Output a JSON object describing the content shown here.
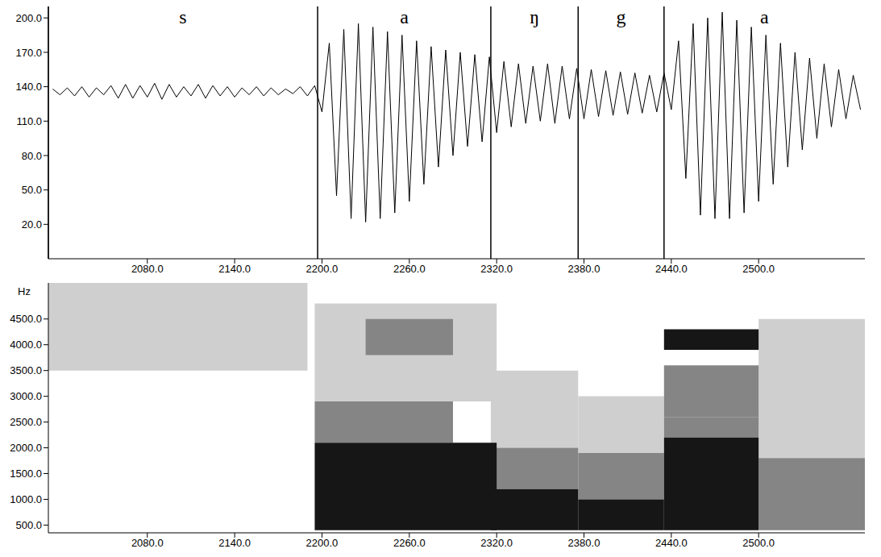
{
  "chart_data": [
    {
      "type": "line",
      "segments": [
        {
          "label": "s",
          "start": 2012,
          "end": 2197
        },
        {
          "label": "a",
          "start": 2197,
          "end": 2316
        },
        {
          "label": "ŋ",
          "start": 2316,
          "end": 2376
        },
        {
          "label": "g",
          "start": 2376,
          "end": 2435
        },
        {
          "label": "a",
          "start": 2435,
          "end": 2573
        }
      ],
      "x": [
        2015,
        2020,
        2025,
        2030,
        2035,
        2040,
        2045,
        2050,
        2055,
        2060,
        2065,
        2070,
        2075,
        2080,
        2085,
        2090,
        2095,
        2100,
        2105,
        2110,
        2115,
        2120,
        2125,
        2130,
        2135,
        2140,
        2145,
        2150,
        2155,
        2160,
        2165,
        2170,
        2175,
        2180,
        2185,
        2190,
        2195,
        2200,
        2205,
        2210,
        2215,
        2220,
        2225,
        2230,
        2235,
        2240,
        2245,
        2250,
        2255,
        2260,
        2265,
        2270,
        2275,
        2280,
        2285,
        2290,
        2295,
        2300,
        2305,
        2310,
        2315,
        2320,
        2325,
        2330,
        2335,
        2340,
        2345,
        2350,
        2355,
        2360,
        2365,
        2370,
        2375,
        2380,
        2385,
        2390,
        2395,
        2400,
        2405,
        2410,
        2415,
        2420,
        2425,
        2430,
        2435,
        2440,
        2445,
        2450,
        2455,
        2460,
        2465,
        2470,
        2475,
        2480,
        2485,
        2490,
        2495,
        2500,
        2505,
        2510,
        2515,
        2520,
        2525,
        2530,
        2535,
        2540,
        2545,
        2550,
        2555,
        2560,
        2565,
        2570
      ],
      "values": [
        138,
        133,
        139,
        132,
        140,
        131,
        139,
        133,
        141,
        130,
        142,
        130,
        141,
        131,
        143,
        129,
        142,
        131,
        140,
        132,
        142,
        130,
        141,
        132,
        140,
        131,
        139,
        133,
        140,
        132,
        139,
        133,
        138,
        134,
        140,
        132,
        141,
        118,
        178,
        45,
        190,
        25,
        195,
        22,
        192,
        25,
        188,
        30,
        185,
        40,
        180,
        55,
        175,
        70,
        172,
        80,
        170,
        88,
        168,
        92,
        166,
        100,
        162,
        105,
        160,
        108,
        158,
        110,
        160,
        108,
        158,
        112,
        156,
        112,
        155,
        114,
        154,
        115,
        153,
        116,
        152,
        117,
        150,
        118,
        152,
        120,
        180,
        60,
        195,
        28,
        200,
        25,
        205,
        25,
        198,
        30,
        192,
        40,
        185,
        55,
        178,
        70,
        170,
        85,
        165,
        95,
        160,
        105,
        155,
        112,
        150,
        120
      ],
      "color": "#000000",
      "xlim": [
        2012,
        2573
      ],
      "xticks": [
        {
          "value": 2080,
          "label": "2080.0"
        },
        {
          "value": 2140,
          "label": "2140.0"
        },
        {
          "value": 2200,
          "label": "2200.0"
        },
        {
          "value": 2260,
          "label": "2260.0"
        },
        {
          "value": 2320,
          "label": "2320.0"
        },
        {
          "value": 2380,
          "label": "2380.0"
        },
        {
          "value": 2440,
          "label": "2440.0"
        },
        {
          "value": 2500,
          "label": "2500.0"
        }
      ],
      "ylim": [
        -10,
        210
      ],
      "yticks": [
        {
          "value": 20,
          "label": "20.0"
        },
        {
          "value": 50,
          "label": "50.0"
        },
        {
          "value": 80,
          "label": "80.0"
        },
        {
          "value": 110,
          "label": "110.0"
        },
        {
          "value": 140,
          "label": "140.0"
        },
        {
          "value": 170,
          "label": "170.0"
        },
        {
          "value": 200,
          "label": "200.0"
        }
      ],
      "grid": false
    },
    {
      "type": "heatmap",
      "ylabel": "Hz",
      "cells": [
        {
          "x": [
            2012,
            2190
          ],
          "y": [
            3500,
            5200
          ],
          "level": 1
        },
        {
          "x": [
            2195,
            2320
          ],
          "y": [
            2900,
            4800
          ],
          "level": 1
        },
        {
          "x": [
            2316,
            2376
          ],
          "y": [
            2000,
            3500
          ],
          "level": 1
        },
        {
          "x": [
            2376,
            2435
          ],
          "y": [
            1900,
            3000
          ],
          "level": 1
        },
        {
          "x": [
            2500,
            2573
          ],
          "y": [
            1800,
            4500
          ],
          "level": 1
        },
        {
          "x": [
            2195,
            2290
          ],
          "y": [
            2100,
            2900
          ],
          "level": 2
        },
        {
          "x": [
            2230,
            2290
          ],
          "y": [
            3800,
            4500
          ],
          "level": 2
        },
        {
          "x": [
            2316,
            2376
          ],
          "y": [
            1200,
            2000
          ],
          "level": 2
        },
        {
          "x": [
            2376,
            2435
          ],
          "y": [
            1000,
            1900
          ],
          "level": 2
        },
        {
          "x": [
            2435,
            2500
          ],
          "y": [
            2600,
            3600
          ],
          "level": 2
        },
        {
          "x": [
            2435,
            2500
          ],
          "y": [
            2200,
            2600
          ],
          "level": 2
        },
        {
          "x": [
            2500,
            2573
          ],
          "y": [
            400,
            1800
          ],
          "level": 2
        },
        {
          "x": [
            2195,
            2320
          ],
          "y": [
            400,
            2100
          ],
          "level": 3
        },
        {
          "x": [
            2316,
            2376
          ],
          "y": [
            400,
            1200
          ],
          "level": 3
        },
        {
          "x": [
            2376,
            2435
          ],
          "y": [
            400,
            1000
          ],
          "level": 3
        },
        {
          "x": [
            2435,
            2500
          ],
          "y": [
            400,
            2200
          ],
          "level": 3
        },
        {
          "x": [
            2435,
            2500
          ],
          "y": [
            3900,
            4300
          ],
          "level": 3
        }
      ],
      "xlim": [
        2012,
        2573
      ],
      "xticks": [
        {
          "value": 2080,
          "label": "2080.0"
        },
        {
          "value": 2140,
          "label": "2140.0"
        },
        {
          "value": 2200,
          "label": "2200.0"
        },
        {
          "value": 2260,
          "label": "2260.0"
        },
        {
          "value": 2320,
          "label": "2320.0"
        },
        {
          "value": 2380,
          "label": "2380.0"
        },
        {
          "value": 2440,
          "label": "2440.0"
        },
        {
          "value": 2500,
          "label": "2500.0"
        }
      ],
      "ylim": [
        350,
        5200
      ],
      "yticks": [
        {
          "value": 500,
          "label": "500.0"
        },
        {
          "value": 1000,
          "label": "1000.0"
        },
        {
          "value": 1500,
          "label": "1500.0"
        },
        {
          "value": 2000,
          "label": "2000.0"
        },
        {
          "value": 2500,
          "label": "2500.0"
        },
        {
          "value": 3000,
          "label": "3000.0"
        },
        {
          "value": 3500,
          "label": "3500.0"
        },
        {
          "value": 4000,
          "label": "4000.0"
        },
        {
          "value": 4500,
          "label": "4500.0"
        }
      ],
      "grid": false
    }
  ]
}
